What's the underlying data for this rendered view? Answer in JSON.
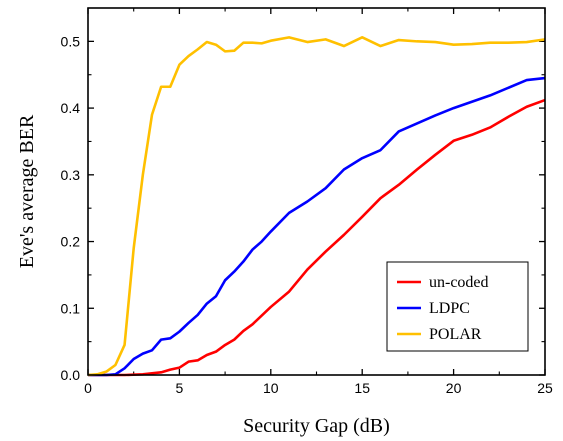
{
  "chart_data": {
    "type": "line",
    "xlabel": "Security Gap (dB)",
    "ylabel": "Eve's average BER",
    "xlim": [
      0,
      25
    ],
    "ylim": [
      0,
      0.55
    ],
    "x_ticks": [
      0,
      5,
      10,
      15,
      20,
      25
    ],
    "y_ticks": [
      0.0,
      0.1,
      0.2,
      0.3,
      0.4,
      0.5
    ],
    "x_tick_labels": [
      "0",
      "5",
      "10",
      "15",
      "20",
      "25"
    ],
    "y_tick_labels": [
      "0.0",
      "0.1",
      "0.2",
      "0.3",
      "0.4",
      "0.5"
    ],
    "grid": false,
    "legend_position": "bottom-right",
    "series": [
      {
        "name": "un-coded",
        "color": "#ff0000",
        "points": [
          [
            0,
            0
          ],
          [
            1,
            0
          ],
          [
            2,
            0
          ],
          [
            3,
            0.001
          ],
          [
            4,
            0.004
          ],
          [
            4.5,
            0.008
          ],
          [
            5,
            0.011
          ],
          [
            5.5,
            0.02
          ],
          [
            6,
            0.022
          ],
          [
            6.5,
            0.03
          ],
          [
            7,
            0.035
          ],
          [
            7.5,
            0.045
          ],
          [
            8,
            0.053
          ],
          [
            8.5,
            0.066
          ],
          [
            9,
            0.076
          ],
          [
            10,
            0.102
          ],
          [
            11,
            0.125
          ],
          [
            12,
            0.158
          ],
          [
            13,
            0.185
          ],
          [
            14,
            0.21
          ],
          [
            15,
            0.237
          ],
          [
            16,
            0.265
          ],
          [
            17,
            0.285
          ],
          [
            18,
            0.308
          ],
          [
            19,
            0.33
          ],
          [
            20,
            0.351
          ],
          [
            21,
            0.36
          ],
          [
            22,
            0.371
          ],
          [
            23,
            0.387
          ],
          [
            24,
            0.402
          ],
          [
            25,
            0.412
          ]
        ]
      },
      {
        "name": "LDPC",
        "color": "#0000ff",
        "points": [
          [
            0,
            0
          ],
          [
            1,
            0
          ],
          [
            1.5,
            0.001
          ],
          [
            2,
            0.01
          ],
          [
            2.5,
            0.024
          ],
          [
            3,
            0.032
          ],
          [
            3.5,
            0.037
          ],
          [
            4,
            0.053
          ],
          [
            4.5,
            0.055
          ],
          [
            5,
            0.065
          ],
          [
            5.5,
            0.078
          ],
          [
            6,
            0.09
          ],
          [
            6.5,
            0.107
          ],
          [
            7,
            0.118
          ],
          [
            7.5,
            0.142
          ],
          [
            8,
            0.155
          ],
          [
            8.5,
            0.17
          ],
          [
            9,
            0.188
          ],
          [
            9.5,
            0.2
          ],
          [
            10,
            0.215
          ],
          [
            11,
            0.243
          ],
          [
            12,
            0.26
          ],
          [
            13,
            0.28
          ],
          [
            14,
            0.308
          ],
          [
            15,
            0.325
          ],
          [
            16,
            0.337
          ],
          [
            17,
            0.365
          ],
          [
            18,
            0.377
          ],
          [
            19,
            0.389
          ],
          [
            20,
            0.4
          ],
          [
            22,
            0.419
          ],
          [
            24,
            0.442
          ],
          [
            25,
            0.445
          ]
        ]
      },
      {
        "name": "POLAR",
        "color": "#ffc000",
        "points": [
          [
            0,
            0
          ],
          [
            0.5,
            0.001
          ],
          [
            1,
            0.005
          ],
          [
            1.5,
            0.015
          ],
          [
            2,
            0.045
          ],
          [
            2.5,
            0.19
          ],
          [
            3,
            0.3
          ],
          [
            3.5,
            0.39
          ],
          [
            4,
            0.432
          ],
          [
            4.5,
            0.432
          ],
          [
            5,
            0.465
          ],
          [
            5.5,
            0.478
          ],
          [
            6,
            0.488
          ],
          [
            6.5,
            0.499
          ],
          [
            7,
            0.495
          ],
          [
            7.5,
            0.485
          ],
          [
            8,
            0.486
          ],
          [
            8.5,
            0.498
          ],
          [
            9,
            0.498
          ],
          [
            9.5,
            0.497
          ],
          [
            10,
            0.501
          ],
          [
            11,
            0.506
          ],
          [
            12,
            0.499
          ],
          [
            13,
            0.503
          ],
          [
            14,
            0.493
          ],
          [
            15,
            0.506
          ],
          [
            16,
            0.493
          ],
          [
            17,
            0.502
          ],
          [
            18,
            0.5
          ],
          [
            19,
            0.499
          ],
          [
            20,
            0.495
          ],
          [
            21,
            0.496
          ],
          [
            22,
            0.498
          ],
          [
            23,
            0.498
          ],
          [
            24,
            0.499
          ],
          [
            25,
            0.503
          ]
        ]
      }
    ]
  }
}
